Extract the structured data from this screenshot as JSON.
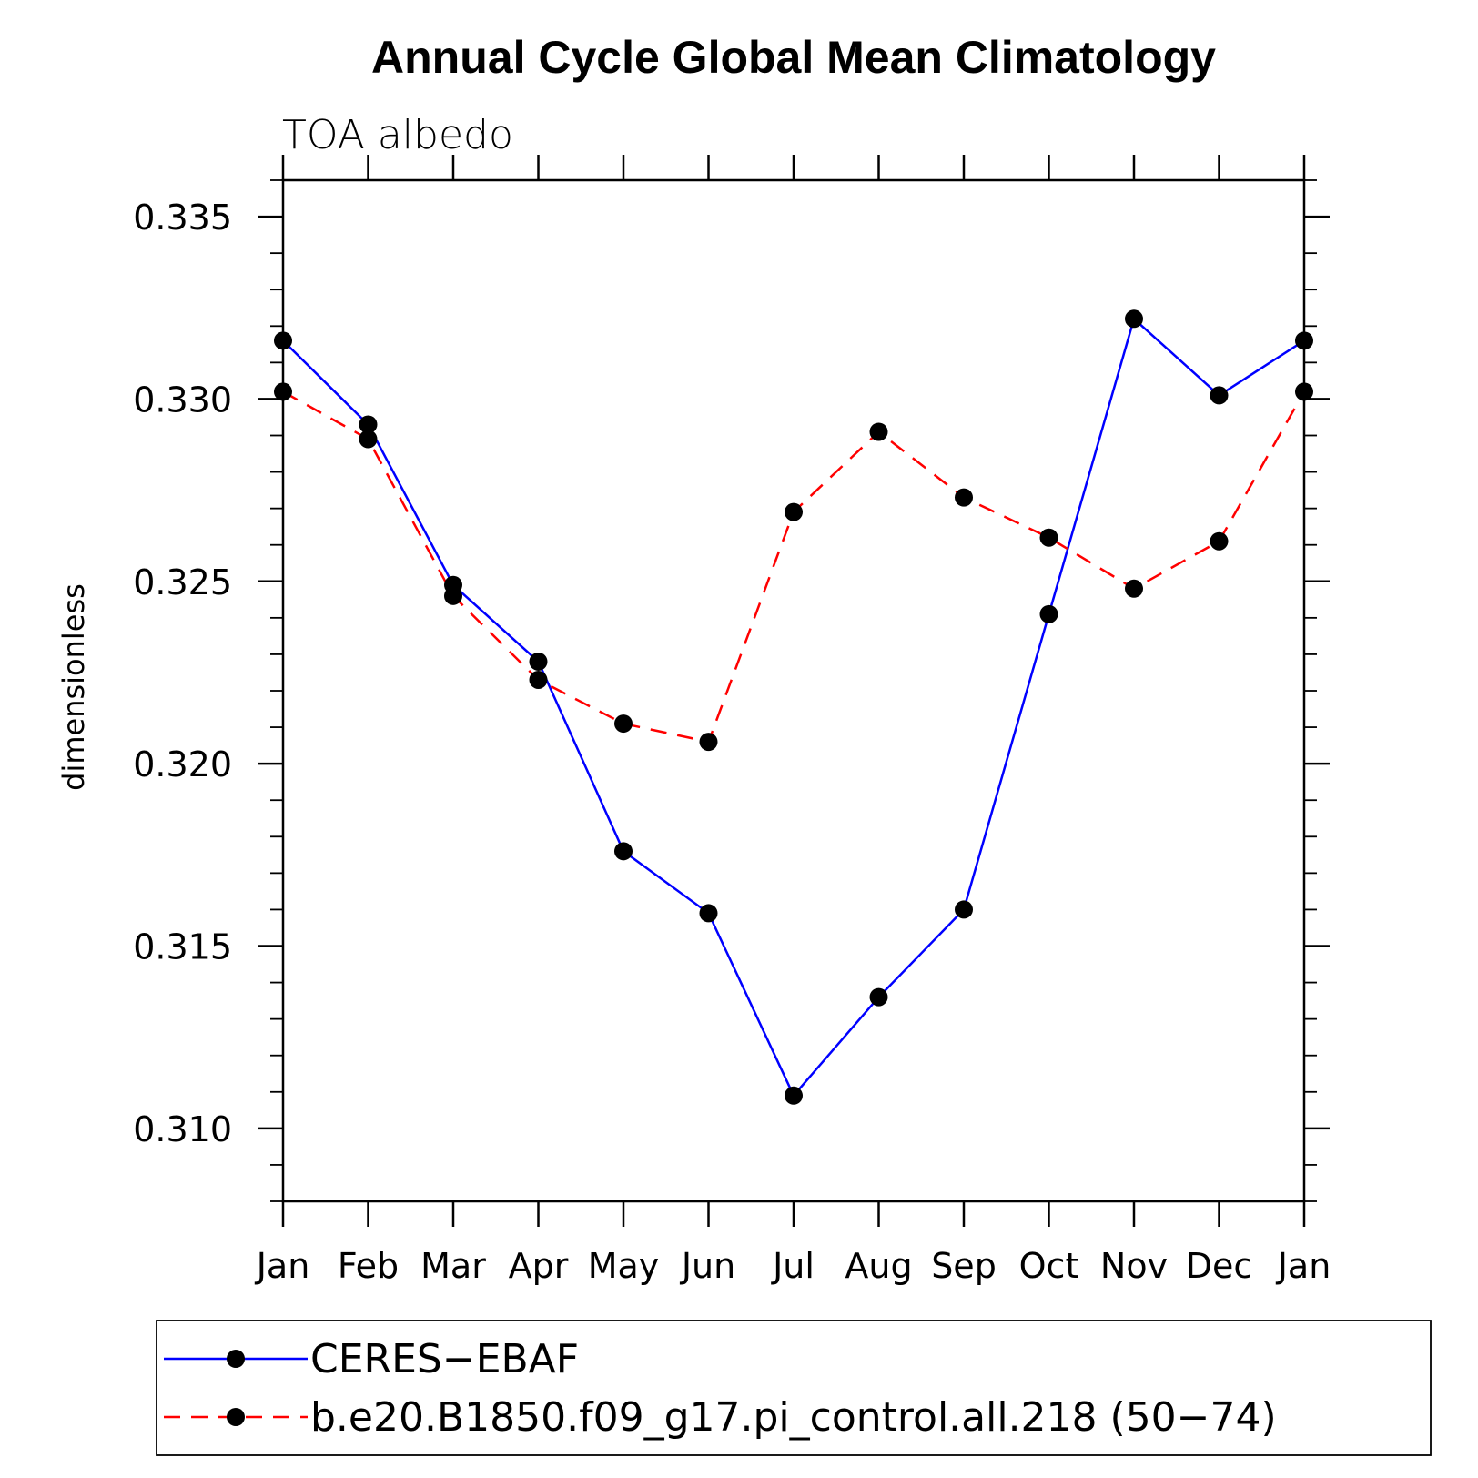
{
  "chart_data": {
    "type": "line",
    "title": "Annual Cycle Global Mean Climatology",
    "subtitle": "TOA albedo",
    "xlabel": "",
    "ylabel": "dimensionless",
    "categories": [
      "Jan",
      "Feb",
      "Mar",
      "Apr",
      "May",
      "Jun",
      "Jul",
      "Aug",
      "Sep",
      "Oct",
      "Nov",
      "Dec",
      "Jan"
    ],
    "ylim": [
      0.308,
      0.336
    ],
    "yticks": [
      0.31,
      0.315,
      0.32,
      0.325,
      0.33,
      0.335
    ],
    "ytick_labels": [
      "0.310",
      "0.315",
      "0.320",
      "0.325",
      "0.330",
      "0.335"
    ],
    "grid": false,
    "legend_position": "bottom",
    "series": [
      {
        "name": "CERES−EBAF",
        "color": "#0000ff",
        "line_style": "solid",
        "marker": "filled-circle",
        "values": [
          0.3316,
          0.3293,
          0.3249,
          0.3228,
          0.3176,
          0.3159,
          0.3109,
          0.3136,
          0.316,
          0.3241,
          0.3322,
          0.3301,
          0.3316
        ]
      },
      {
        "name": "b.e20.B1850.f09_g17.pi_control.all.218 (50−74)",
        "color": "#ff0000",
        "line_style": "dashed",
        "marker": "filled-circle",
        "values": [
          0.3302,
          0.3289,
          0.3246,
          0.3223,
          0.3211,
          0.3206,
          0.3269,
          0.3291,
          0.3273,
          0.3262,
          0.3248,
          0.3261,
          0.3302
        ]
      }
    ]
  }
}
